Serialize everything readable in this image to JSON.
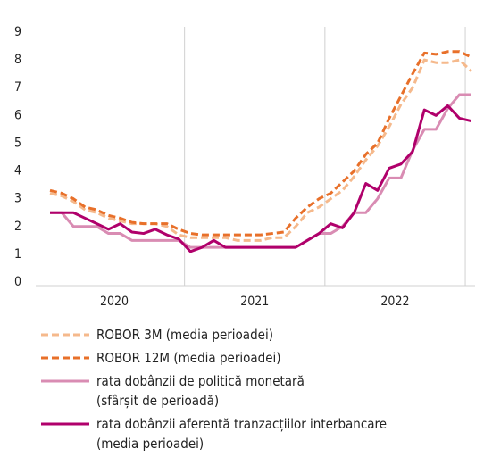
{
  "chart_data": {
    "type": "line",
    "categories": [
      null,
      null,
      null,
      null,
      null,
      "2020",
      null,
      null,
      null,
      null,
      null,
      null,
      null,
      null,
      null,
      null,
      null,
      "2021",
      null,
      null,
      null,
      null,
      null,
      null,
      null,
      null,
      null,
      null,
      null,
      "2022",
      null,
      null,
      null,
      null,
      null,
      null,
      null
    ],
    "ylim": [
      0,
      9
    ],
    "yticks": [
      0,
      1,
      2,
      3,
      4,
      5,
      6,
      7,
      8,
      9
    ],
    "series": [
      {
        "name": "ROBOR 3M (media perioadei)",
        "color": "#f5b98c",
        "dash": true,
        "values": [
          3.2,
          3.1,
          2.9,
          2.6,
          2.5,
          2.3,
          2.2,
          2.1,
          2.1,
          2.1,
          2.0,
          1.7,
          1.6,
          1.6,
          1.6,
          1.6,
          1.5,
          1.5,
          1.5,
          1.6,
          1.6,
          2.0,
          2.5,
          2.7,
          3.0,
          3.3,
          3.8,
          4.4,
          4.9,
          5.6,
          6.4,
          7.0,
          8.0,
          7.9,
          7.9,
          8.0,
          7.6
        ]
      },
      {
        "name": "ROBOR 12M (media perioadei)",
        "color": "#e8702a",
        "dash": true,
        "values": [
          3.3,
          3.2,
          3.0,
          2.7,
          2.6,
          2.4,
          2.3,
          2.15,
          2.1,
          2.1,
          2.1,
          1.9,
          1.75,
          1.7,
          1.7,
          1.7,
          1.7,
          1.7,
          1.7,
          1.75,
          1.8,
          2.3,
          2.7,
          3.0,
          3.2,
          3.6,
          4.0,
          4.6,
          5.0,
          5.9,
          6.7,
          7.5,
          8.25,
          8.2,
          8.3,
          8.3,
          8.1
        ]
      },
      {
        "name": "rata dobânzii de politică monetară\n(sfârșit de perioadă)",
        "color": "#d98cb3",
        "dash": false,
        "values": [
          2.5,
          2.5,
          2.0,
          2.0,
          2.0,
          1.75,
          1.75,
          1.5,
          1.5,
          1.5,
          1.5,
          1.5,
          1.25,
          1.25,
          1.25,
          1.25,
          1.25,
          1.25,
          1.25,
          1.25,
          1.25,
          1.25,
          1.5,
          1.75,
          1.75,
          2.0,
          2.5,
          2.5,
          3.0,
          3.75,
          3.75,
          4.75,
          5.5,
          5.5,
          6.25,
          6.75,
          6.75
        ]
      },
      {
        "name": "rata dobânzii aferentă tranzacțiilor interbancare\n(media perioadei)",
        "color": "#b0006b",
        "dash": false,
        "values": [
          2.5,
          2.5,
          2.5,
          2.3,
          2.1,
          1.9,
          2.1,
          1.8,
          1.75,
          1.9,
          1.7,
          1.55,
          1.1,
          1.25,
          1.5,
          1.25,
          1.25,
          1.25,
          1.25,
          1.25,
          1.25,
          1.25,
          1.5,
          1.75,
          2.1,
          1.95,
          2.5,
          3.55,
          3.3,
          4.1,
          4.25,
          4.7,
          6.2,
          6.0,
          6.35,
          5.9,
          5.8
        ]
      }
    ]
  }
}
